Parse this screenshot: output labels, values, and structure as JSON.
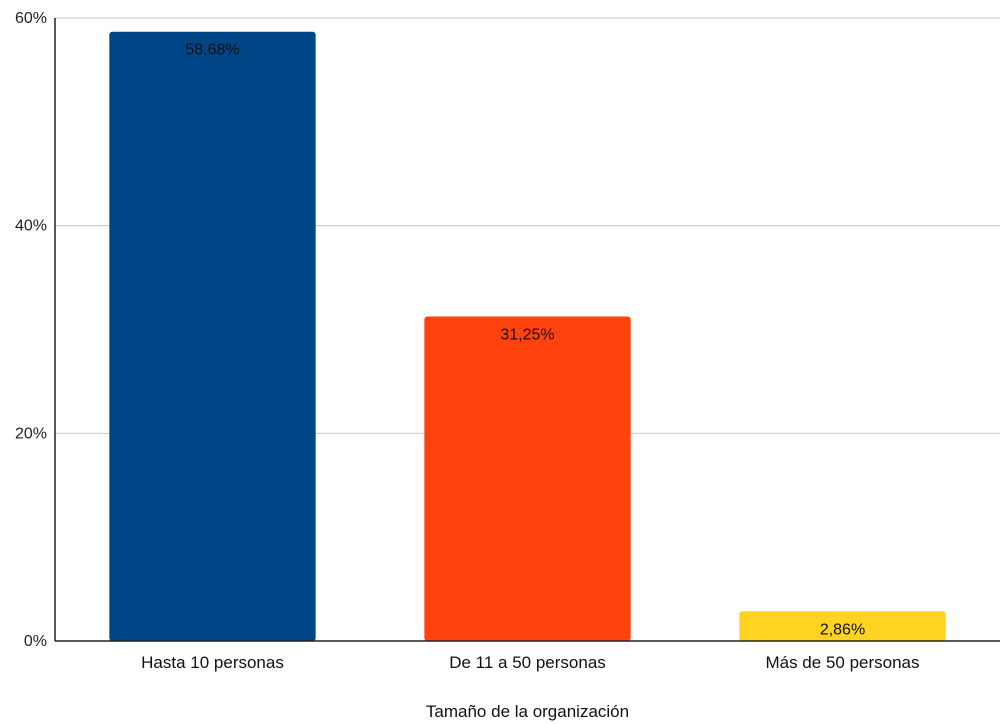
{
  "chart_data": {
    "type": "bar",
    "title": "",
    "xlabel": "Tamaño de la organización",
    "ylabel": "",
    "categories": [
      "Hasta 10 personas",
      "De 11 a 50 personas",
      "Más de 50 personas"
    ],
    "values": [
      58.68,
      31.25,
      2.86
    ],
    "data_labels": [
      "58,68%",
      "31,25%",
      "2,86%"
    ],
    "colors": [
      "#004586",
      "#ff420e",
      "#ffd320"
    ],
    "ylim": [
      0,
      60
    ],
    "yticks": [
      0,
      20,
      40,
      60
    ],
    "ytick_labels": [
      "0%",
      "20%",
      "40%",
      "60%"
    ],
    "grid": true,
    "legend": "none"
  }
}
